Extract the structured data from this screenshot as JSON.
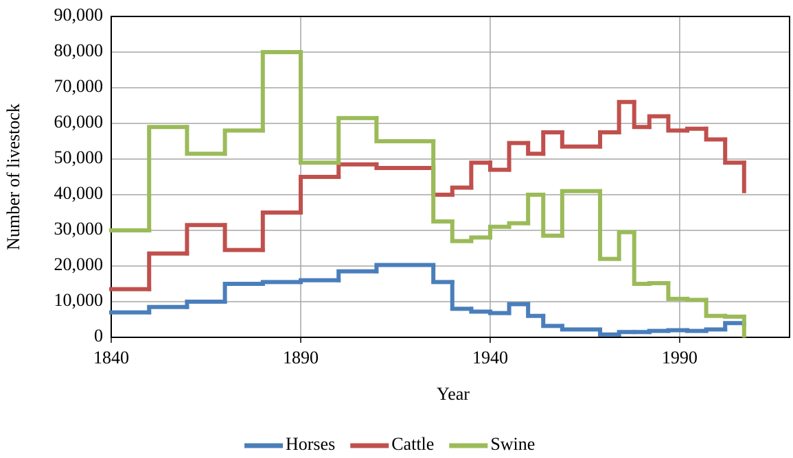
{
  "chart_data": {
    "type": "step",
    "x_label": "Year",
    "y_label": "Number of livestock",
    "x": [
      1840,
      1850,
      1860,
      1870,
      1880,
      1890,
      1900,
      1910,
      1925,
      1930,
      1935,
      1940,
      1945,
      1950,
      1954,
      1959,
      1969,
      1974,
      1978,
      1982,
      1987,
      1992,
      1997,
      2002,
      2007
    ],
    "series": [
      {
        "name": "Horses",
        "color": "#4a7ebb",
        "values": [
          7000,
          8500,
          10000,
          15000,
          15500,
          16000,
          18500,
          20300,
          15500,
          8000,
          7200,
          6800,
          9300,
          6000,
          3200,
          2200,
          800,
          1500,
          1500,
          1800,
          2000,
          1800,
          2200,
          4000,
          3500
        ]
      },
      {
        "name": "Cattle",
        "color": "#c0504d",
        "values": [
          13500,
          23500,
          31500,
          24500,
          35000,
          45000,
          48500,
          47500,
          40000,
          42000,
          49000,
          47000,
          54500,
          51500,
          57500,
          53500,
          57500,
          66000,
          59000,
          62000,
          58000,
          58500,
          55500,
          49000,
          41000
        ]
      },
      {
        "name": "Swine",
        "color": "#9bbb59",
        "values": [
          30000,
          59000,
          51500,
          58000,
          80000,
          49000,
          61500,
          55000,
          32500,
          27000,
          28000,
          31000,
          32000,
          40000,
          28500,
          41000,
          22000,
          29500,
          15000,
          15200,
          10800,
          10500,
          6000,
          5800,
          500
        ]
      }
    ],
    "xlim": [
      1840,
      2019
    ],
    "xticks": [
      1840,
      1890,
      1940,
      1990
    ],
    "ylim": [
      0,
      90000
    ],
    "yticks": [
      0,
      {
        "value": 10000,
        "label": "10,000"
      },
      {
        "value": 20000,
        "label": "20,000"
      },
      {
        "value": 30000,
        "label": "30,000"
      },
      {
        "value": 40000,
        "label": "40,000"
      },
      {
        "value": 50000,
        "label": "50,000"
      },
      {
        "value": 60000,
        "label": "60,000"
      },
      {
        "value": 70000,
        "label": "70,000"
      },
      {
        "value": 80000,
        "label": "80,000"
      },
      {
        "value": 90000,
        "label": "90,000"
      }
    ],
    "grid": true,
    "legend": "bottom"
  }
}
